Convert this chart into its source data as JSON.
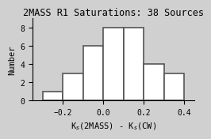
{
  "title": "2MASS R1 Saturations: 38 Sources",
  "xlabel": "K$_s$(2MASS) - K$_s$(CW)",
  "ylabel": "Number",
  "bin_edges": [
    -0.3,
    -0.2,
    -0.1,
    0.0,
    0.1,
    0.2,
    0.3,
    0.4
  ],
  "counts": [
    1,
    3,
    6,
    8,
    8,
    4,
    3
  ],
  "xlim": [
    -0.35,
    0.45
  ],
  "ylim": [
    0,
    9
  ],
  "yticks": [
    0,
    2,
    4,
    6,
    8
  ],
  "xticks": [
    -0.2,
    0.0,
    0.2,
    0.4
  ],
  "bar_color": "white",
  "edge_color": "#555555",
  "bg_color": "#d0d0d0",
  "title_fontsize": 8.5,
  "label_fontsize": 7.5,
  "tick_fontsize": 7
}
